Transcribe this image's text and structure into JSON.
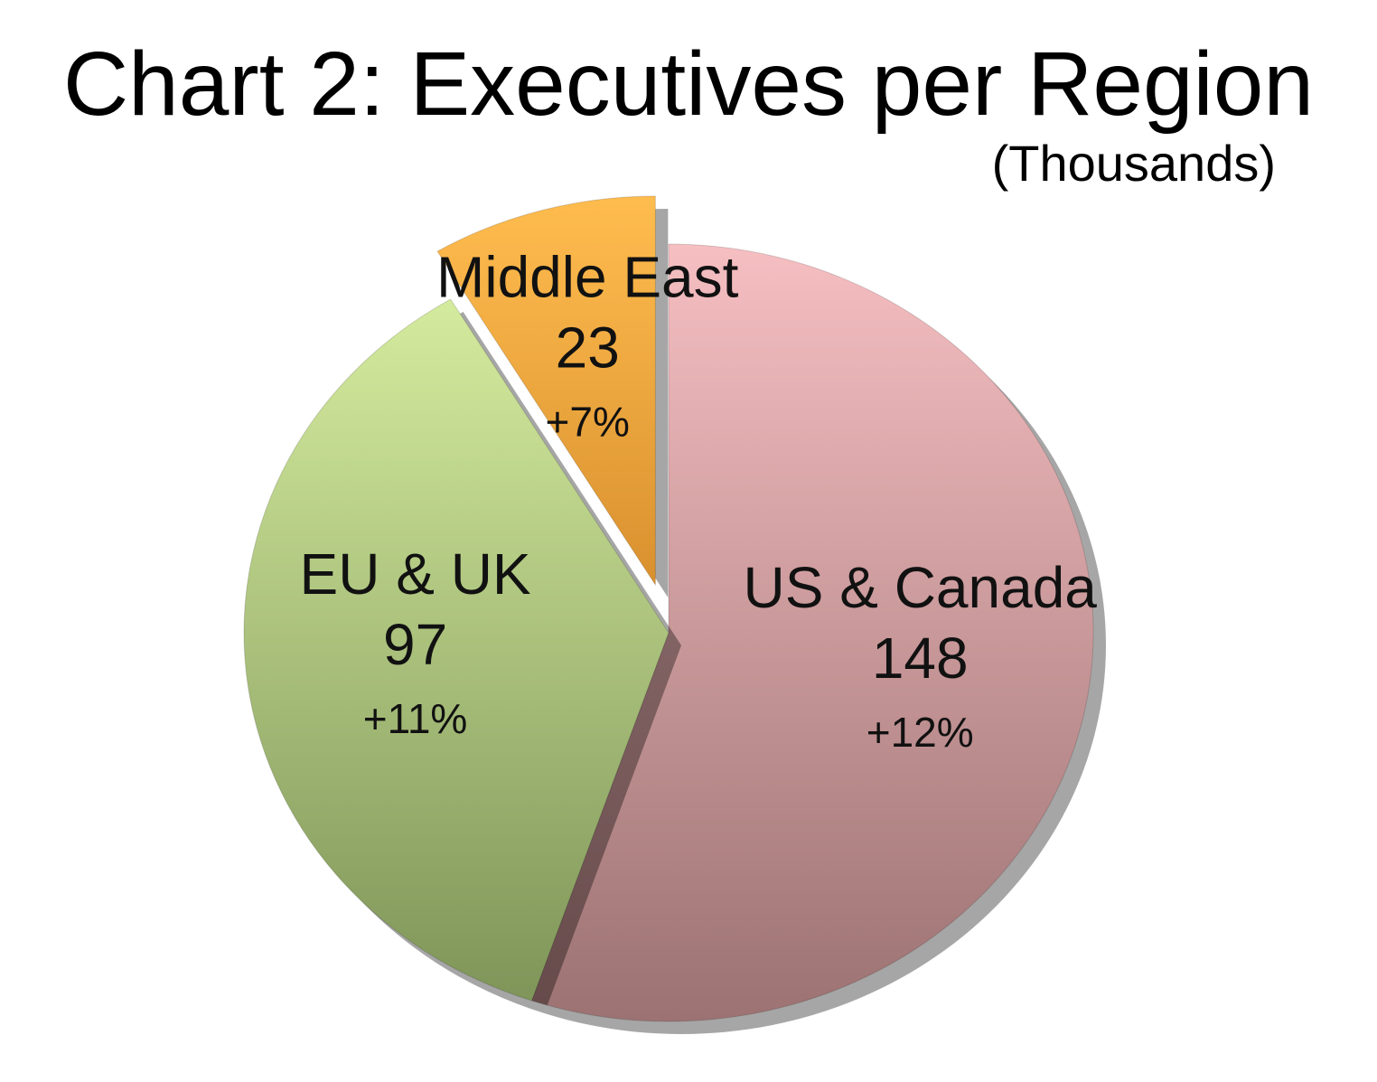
{
  "chart_data": {
    "type": "pie",
    "title": "Chart 2: Executives per Region",
    "subtitle": "(Thousands)",
    "slices": [
      {
        "name": "US & Canada",
        "value": 148,
        "change": "+12%",
        "color": "#e9aeb1",
        "exploded": false
      },
      {
        "name": "EU & UK",
        "value": 97,
        "change": "+11%",
        "color": "#bfd98c",
        "exploded": false
      },
      {
        "name": "Middle East",
        "value": 23,
        "change": "+7%",
        "color": "#f7b146",
        "exploded": true
      }
    ]
  }
}
